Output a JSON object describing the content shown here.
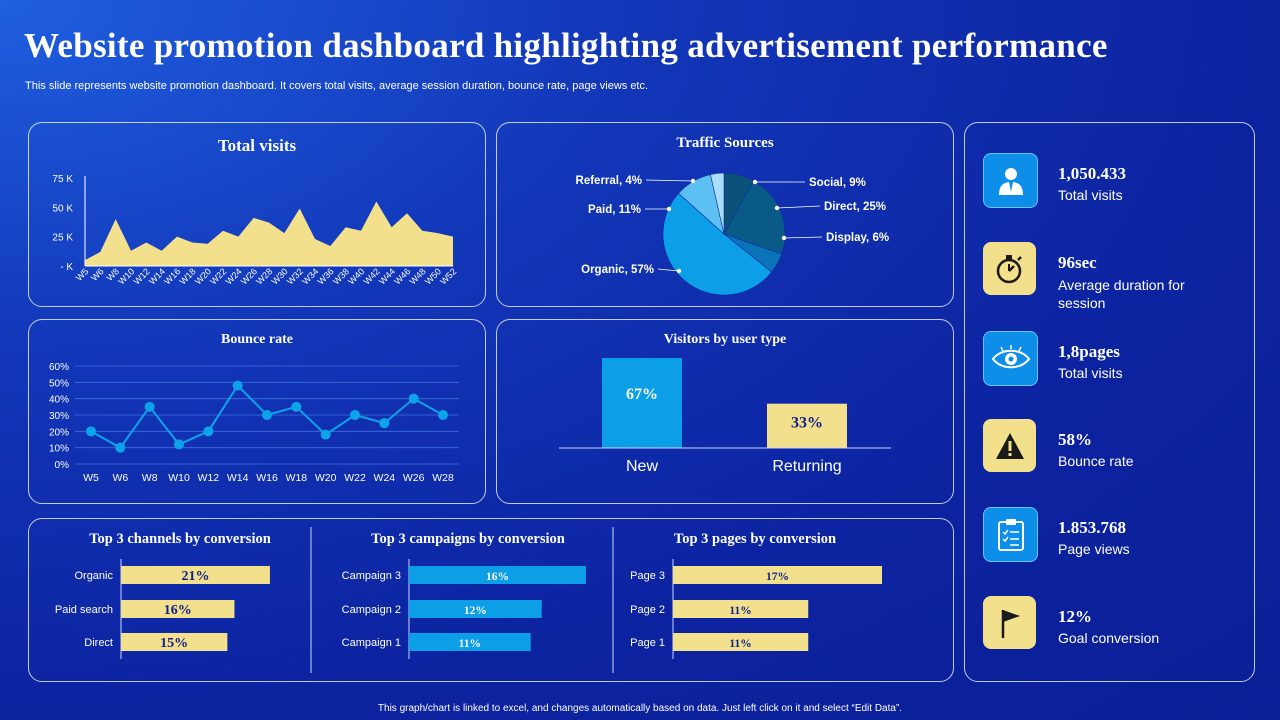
{
  "header": {
    "title": "Website promotion dashboard highlighting advertisement performance",
    "subtitle": "This slide represents website promotion dashboard. It covers total visits, average session duration, bounce rate, page views etc."
  },
  "footer": "This graph/chart is linked to excel, and changes automatically based on data. Just left click on it and select “Edit Data”.",
  "colors": {
    "yellow": "#f2e08c",
    "blue": "#0d9ee8",
    "darkteal": "#0b5b8a",
    "lightblue": "#6cc8f5"
  },
  "chart_data": [
    {
      "id": "total_visits",
      "type": "area",
      "title": "Total visits",
      "x": [
        "W5",
        "W6",
        "W8",
        "W10",
        "W12",
        "W14",
        "W16",
        "W18",
        "W20",
        "W22",
        "W24",
        "W26",
        "W28",
        "W30",
        "W32",
        "W34",
        "W36",
        "W38",
        "W40",
        "W42",
        "W44",
        "W46",
        "W48",
        "W50",
        "W52"
      ],
      "x_tick_labels": [
        "W5",
        "W6",
        "W8",
        "W10",
        "W12",
        "W14",
        "W16",
        "W18",
        "W20",
        "W22",
        "W24",
        "W26",
        "W28",
        "W30",
        "W32",
        "W34",
        "W36",
        "W38",
        "W40",
        "W42",
        "W44",
        "W46",
        "W48",
        "W50",
        "W52"
      ],
      "values": [
        5000,
        12000,
        40000,
        13000,
        20000,
        13000,
        25000,
        20000,
        19000,
        30000,
        25000,
        41000,
        37000,
        28000,
        49000,
        23000,
        17000,
        33000,
        30000,
        55000,
        33000,
        45000,
        30000,
        28000,
        25000
      ],
      "y_ticks": [
        "- K",
        "25 K",
        "50 K",
        "75 K"
      ],
      "ylim": [
        0,
        75000
      ]
    },
    {
      "id": "traffic_sources",
      "type": "pie",
      "title": "Traffic Sources",
      "slices": [
        {
          "label": "Social, 9%",
          "value": 9,
          "color": "#0b5278"
        },
        {
          "label": "Direct, 25%",
          "value": 25,
          "color": "#0a5a88"
        },
        {
          "label": "Display, 6%",
          "value": 6,
          "color": "#0b74b8"
        },
        {
          "label": "Organic, 57%",
          "value": 57,
          "color": "#0d9ee8"
        },
        {
          "label": "Paid, 11%",
          "value": 11,
          "color": "#5cc0f2"
        },
        {
          "label": "Referral, 4%",
          "value": 4,
          "color": "#a9defa"
        }
      ]
    },
    {
      "id": "bounce_rate",
      "type": "line",
      "title": "Bounce rate",
      "x": [
        "W5",
        "W6",
        "W8",
        "W10",
        "W12",
        "W14",
        "W16",
        "W18",
        "W20",
        "W22",
        "W24",
        "W26",
        "W28"
      ],
      "values": [
        20,
        10,
        35,
        12,
        20,
        48,
        30,
        35,
        18,
        30,
        25,
        40,
        30
      ],
      "y_ticks": [
        "0%",
        "10%",
        "20%",
        "30%",
        "40%",
        "50%",
        "60%"
      ],
      "ylim": [
        0,
        60
      ]
    },
    {
      "id": "visitors_by_user_type",
      "type": "bar",
      "title": "Visitors by user type",
      "categories": [
        "New",
        "Returning"
      ],
      "values": [
        67,
        33
      ],
      "value_labels": [
        "67%",
        "33%"
      ],
      "ylim": [
        0,
        70
      ]
    },
    {
      "id": "channels",
      "type": "bar",
      "orientation": "horizontal",
      "title": "Top 3 channels by conversion",
      "categories": [
        "Organic",
        "Paid search",
        "Direct"
      ],
      "values": [
        21,
        16,
        15
      ],
      "value_labels": [
        "21%",
        "16%",
        "15%"
      ],
      "xlim": [
        0,
        22
      ]
    },
    {
      "id": "campaigns",
      "type": "bar",
      "orientation": "horizontal",
      "title": "Top 3 campaigns by conversion",
      "categories": [
        "Campaign 3",
        "Campaign 2",
        "Campaign 1"
      ],
      "values": [
        16,
        12,
        11
      ],
      "value_labels": [
        "16%",
        "12%",
        "11%"
      ],
      "xlim": [
        0,
        16
      ]
    },
    {
      "id": "pages",
      "type": "bar",
      "orientation": "horizontal",
      "title": "Top 3 pages by conversion",
      "categories": [
        "Page 3",
        "Page 2",
        "Page 1"
      ],
      "values": [
        17,
        11,
        11
      ],
      "value_labels": [
        "17%",
        "11%",
        "11%"
      ],
      "xlim": [
        0,
        17
      ]
    }
  ],
  "kpis": [
    {
      "value": "1,050.433",
      "label": "Total visits",
      "icon": "user-icon",
      "style": "blue"
    },
    {
      "value": "96sec",
      "label": "Average duration for session",
      "icon": "stopwatch-icon",
      "style": "yellow"
    },
    {
      "value": "1,8pages",
      "label": "Total visits",
      "icon": "eye-icon",
      "style": "blue"
    },
    {
      "value": "58%",
      "label": "Bounce rate",
      "icon": "warning-icon",
      "style": "yellow"
    },
    {
      "value": "1.853.768",
      "label": "Page views",
      "icon": "clipboard-icon",
      "style": "blue"
    },
    {
      "value": "12%",
      "label": "Goal conversion",
      "icon": "flag-icon",
      "style": "yellow"
    }
  ]
}
